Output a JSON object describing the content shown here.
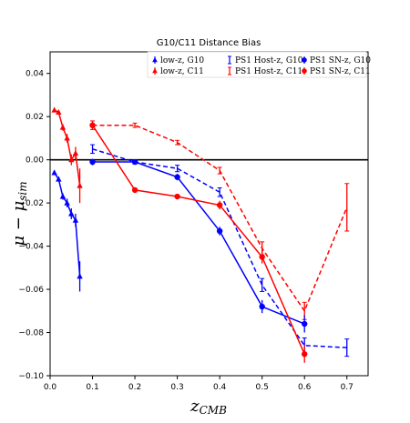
{
  "chart_data": {
    "type": "line",
    "title": "G10/C11 Distance Bias",
    "xlabel": "z_CMB",
    "ylabel": "μ − μ_sim",
    "xlim": [
      0.0,
      0.75
    ],
    "ylim": [
      -0.1,
      0.05
    ],
    "xticks": [
      "0.0",
      "0.1",
      "0.2",
      "0.3",
      "0.4",
      "0.5",
      "0.6",
      "0.7"
    ],
    "yticks": [
      "0.04",
      "0.02",
      "0.00",
      "−0.02",
      "−0.04",
      "−0.06",
      "−0.08",
      "−0.10"
    ],
    "grid": false,
    "reference_line_y": 0.0,
    "legend_position": "top-right",
    "series": [
      {
        "name": "low-z, G10",
        "color": "#0000ff",
        "marker": "triangle",
        "linestyle": "solid",
        "x": [
          0.01,
          0.02,
          0.03,
          0.04,
          0.05,
          0.06,
          0.07
        ],
        "y": [
          -0.006,
          -0.009,
          -0.017,
          -0.02,
          -0.025,
          -0.028,
          -0.054
        ],
        "yerr": [
          0.001,
          0.001,
          0.0015,
          0.002,
          0.0025,
          0.003,
          0.007
        ]
      },
      {
        "name": "low-z, C11",
        "color": "#ff0000",
        "marker": "triangle",
        "linestyle": "solid",
        "x": [
          0.01,
          0.02,
          0.03,
          0.04,
          0.05,
          0.06,
          0.07
        ],
        "y": [
          0.023,
          0.022,
          0.015,
          0.01,
          0.0,
          0.003,
          -0.012
        ],
        "yerr": [
          0.001,
          0.001,
          0.0015,
          0.002,
          0.0025,
          0.003,
          0.008
        ]
      },
      {
        "name": "PS1 Host-z, G10",
        "color": "#0000ff",
        "marker": "none",
        "linestyle": "dashed",
        "x": [
          0.1,
          0.2,
          0.3,
          0.4,
          0.5,
          0.6,
          0.7
        ],
        "y": [
          0.005,
          -0.001,
          -0.004,
          -0.015,
          -0.058,
          -0.086,
          -0.087
        ],
        "yerr": [
          0.002,
          0.001,
          0.0015,
          0.002,
          0.003,
          0.0035,
          0.004
        ]
      },
      {
        "name": "PS1 Host-z, C11",
        "color": "#ff0000",
        "marker": "none",
        "linestyle": "dashed",
        "x": [
          0.1,
          0.2,
          0.3,
          0.4,
          0.5,
          0.6,
          0.7
        ],
        "y": [
          0.016,
          0.016,
          0.008,
          -0.005,
          -0.041,
          -0.07,
          -0.022
        ],
        "yerr": [
          0.002,
          0.001,
          0.001,
          0.0015,
          0.003,
          0.004,
          0.011
        ]
      },
      {
        "name": "PS1 SN-z, G10",
        "color": "#0000ff",
        "marker": "circle",
        "linestyle": "solid",
        "x": [
          0.1,
          0.2,
          0.3,
          0.4,
          0.5,
          0.6
        ],
        "y": [
          -0.001,
          -0.001,
          -0.008,
          -0.033,
          -0.068,
          -0.076
        ],
        "yerr": [
          0.0015,
          0.001,
          0.0015,
          0.002,
          0.003,
          0.004
        ]
      },
      {
        "name": "PS1 SN-z, C11",
        "color": "#ff0000",
        "marker": "circle",
        "linestyle": "solid",
        "x": [
          0.1,
          0.2,
          0.3,
          0.4,
          0.5,
          0.6
        ],
        "y": [
          0.016,
          -0.014,
          -0.017,
          -0.021,
          -0.045,
          -0.09
        ],
        "yerr": [
          0.0015,
          0.001,
          0.001,
          0.002,
          0.003,
          0.004
        ]
      }
    ]
  }
}
